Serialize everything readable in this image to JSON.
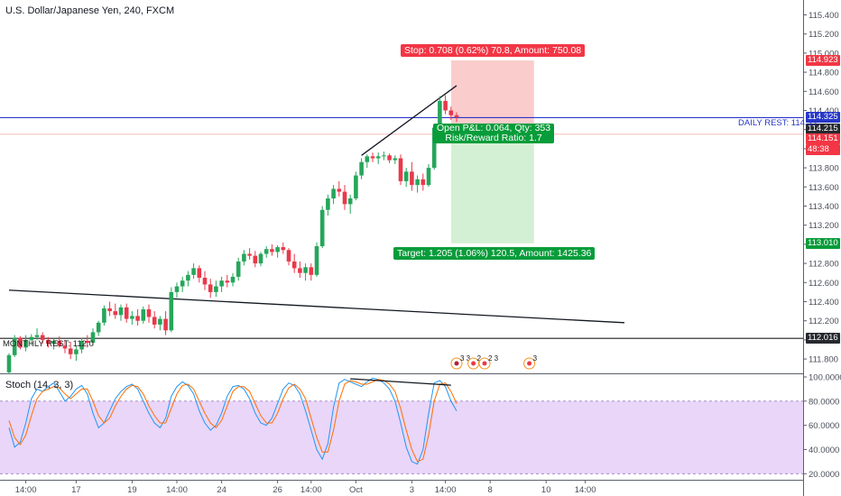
{
  "header": {
    "title": "U.S. Dollar/Japanese Yen, 240, FXCM"
  },
  "chart_data": [
    {
      "type": "candlestick",
      "title": "U.S. Dollar/Japanese Yen, 240, FXCM",
      "symbol": "U.S. Dollar/Japanese Yen",
      "interval": "240",
      "source": "FXCM",
      "y_ticks": [
        "111.800",
        "112.000",
        "112.200",
        "112.400",
        "112.600",
        "112.800",
        "113.000",
        "113.200",
        "113.400",
        "113.600",
        "113.800",
        "114.000",
        "114.200",
        "114.400",
        "114.600",
        "114.800",
        "115.000",
        "115.200",
        "115.400"
      ],
      "ylim": [
        111.65,
        115.48
      ],
      "x_ticks": [
        {
          "label": "14:00",
          "index": 3
        },
        {
          "label": "17",
          "index": 12
        },
        {
          "label": "19",
          "index": 22
        },
        {
          "label": "14:00",
          "index": 30
        },
        {
          "label": "24",
          "index": 38
        },
        {
          "label": "26",
          "index": 48
        },
        {
          "label": "14:00",
          "index": 54
        },
        {
          "label": "Oct",
          "index": 62
        },
        {
          "label": "3",
          "index": 72
        },
        {
          "label": "14:00",
          "index": 78
        },
        {
          "label": "8",
          "index": 86
        },
        {
          "label": "10",
          "index": 96
        },
        {
          "label": "14:00",
          "index": 103
        }
      ],
      "candles": [
        [
          111.66,
          111.86,
          111.64,
          111.84
        ],
        [
          111.84,
          112.05,
          111.82,
          112.02
        ],
        [
          112.02,
          112.04,
          111.9,
          111.92
        ],
        [
          111.92,
          112.05,
          111.88,
          112.0
        ],
        [
          112.0,
          112.06,
          111.94,
          112.03
        ],
        [
          112.03,
          112.12,
          112.0,
          112.05
        ],
        [
          112.05,
          112.08,
          111.96,
          112.0
        ],
        [
          112.0,
          112.03,
          111.92,
          111.96
        ],
        [
          111.96,
          112.02,
          111.9,
          111.99
        ],
        [
          111.99,
          112.04,
          111.92,
          111.94
        ],
        [
          111.94,
          112.0,
          111.86,
          111.91
        ],
        [
          111.91,
          111.98,
          111.8,
          111.85
        ],
        [
          111.85,
          111.94,
          111.78,
          111.9
        ],
        [
          111.9,
          112.02,
          111.86,
          111.99
        ],
        [
          111.99,
          112.05,
          111.92,
          111.97
        ],
        [
          111.97,
          112.12,
          111.94,
          112.08
        ],
        [
          112.08,
          112.2,
          112.04,
          112.18
        ],
        [
          112.18,
          112.36,
          112.15,
          112.33
        ],
        [
          112.33,
          112.4,
          112.25,
          112.3
        ],
        [
          112.3,
          112.38,
          112.22,
          112.26
        ],
        [
          112.26,
          112.37,
          112.2,
          112.34
        ],
        [
          112.34,
          112.38,
          112.18,
          112.22
        ],
        [
          112.22,
          112.3,
          112.16,
          112.25
        ],
        [
          112.25,
          112.32,
          112.15,
          112.2
        ],
        [
          112.2,
          112.35,
          112.17,
          112.32
        ],
        [
          112.32,
          112.37,
          112.18,
          112.24
        ],
        [
          112.24,
          112.3,
          112.12,
          112.16
        ],
        [
          112.16,
          112.25,
          112.1,
          112.22
        ],
        [
          112.22,
          112.3,
          112.05,
          112.1
        ],
        [
          112.1,
          112.55,
          112.08,
          112.5
        ],
        [
          112.5,
          112.6,
          112.44,
          112.56
        ],
        [
          112.56,
          112.66,
          112.5,
          112.62
        ],
        [
          112.62,
          112.72,
          112.56,
          112.68
        ],
        [
          112.68,
          112.8,
          112.64,
          112.75
        ],
        [
          112.75,
          112.78,
          112.6,
          112.65
        ],
        [
          112.65,
          112.72,
          112.52,
          112.58
        ],
        [
          112.58,
          112.64,
          112.44,
          112.5
        ],
        [
          112.5,
          112.62,
          112.45,
          112.56
        ],
        [
          112.56,
          112.66,
          112.5,
          112.62
        ],
        [
          112.62,
          112.68,
          112.55,
          112.6
        ],
        [
          112.6,
          112.7,
          112.56,
          112.66
        ],
        [
          112.66,
          112.86,
          112.62,
          112.82
        ],
        [
          112.82,
          112.94,
          112.78,
          112.9
        ],
        [
          112.9,
          112.96,
          112.84,
          112.88
        ],
        [
          112.88,
          112.93,
          112.76,
          112.8
        ],
        [
          112.8,
          112.92,
          112.77,
          112.9
        ],
        [
          112.9,
          112.98,
          112.86,
          112.95
        ],
        [
          112.95,
          113.0,
          112.88,
          112.92
        ],
        [
          112.92,
          112.99,
          112.86,
          112.97
        ],
        [
          112.97,
          113.02,
          112.9,
          112.94
        ],
        [
          112.94,
          112.96,
          112.78,
          112.82
        ],
        [
          112.82,
          112.9,
          112.7,
          112.75
        ],
        [
          112.75,
          112.82,
          112.65,
          112.7
        ],
        [
          112.7,
          112.8,
          112.62,
          112.76
        ],
        [
          112.76,
          112.8,
          112.62,
          112.68
        ],
        [
          112.68,
          113.02,
          112.66,
          112.98
        ],
        [
          112.98,
          113.4,
          112.96,
          113.36
        ],
        [
          113.36,
          113.52,
          113.3,
          113.48
        ],
        [
          113.48,
          113.62,
          113.42,
          113.58
        ],
        [
          113.58,
          113.66,
          113.5,
          113.55
        ],
        [
          113.55,
          113.62,
          113.36,
          113.42
        ],
        [
          113.42,
          113.52,
          113.32,
          113.48
        ],
        [
          113.48,
          113.76,
          113.46,
          113.72
        ],
        [
          113.72,
          113.9,
          113.68,
          113.86
        ],
        [
          113.86,
          113.94,
          113.8,
          113.92
        ],
        [
          113.92,
          113.96,
          113.86,
          113.9
        ],
        [
          113.9,
          113.96,
          113.84,
          113.92
        ],
        [
          113.92,
          113.97,
          113.88,
          113.93
        ],
        [
          113.93,
          113.95,
          113.85,
          113.88
        ],
        [
          113.88,
          113.93,
          113.84,
          113.9
        ],
        [
          113.9,
          113.94,
          113.62,
          113.66
        ],
        [
          113.66,
          113.8,
          113.6,
          113.76
        ],
        [
          113.76,
          113.86,
          113.56,
          113.62
        ],
        [
          113.62,
          113.72,
          113.54,
          113.68
        ],
        [
          113.68,
          113.74,
          113.56,
          113.62
        ],
        [
          113.62,
          113.84,
          113.6,
          113.8
        ],
        [
          113.8,
          114.25,
          113.78,
          114.22
        ],
        [
          114.22,
          114.55,
          114.18,
          114.5
        ],
        [
          114.5,
          114.56,
          114.36,
          114.4
        ],
        [
          114.4,
          114.44,
          114.3,
          114.35
        ],
        [
          114.35,
          114.38,
          114.28,
          114.33
        ]
      ],
      "horizontal_lines": [
        {
          "label": "DAILY REST:",
          "value": "114.33",
          "price": 114.325,
          "color": "#2737c8"
        },
        {
          "label": "MONTHLY REST:",
          "value": "112.0",
          "price": 112.016,
          "color": "#1f1f1f"
        }
      ],
      "trend_lines": [
        {
          "from": [
            0,
            112.52
          ],
          "to": [
            110,
            112.18
          ]
        },
        {
          "from": [
            63,
            113.93
          ],
          "to": [
            80,
            114.66
          ]
        }
      ],
      "position": {
        "type": "short",
        "entry": 114.215,
        "stop": 114.923,
        "target": 113.01,
        "x_from": 80,
        "x_to": 89,
        "stop_label": "Stop: 0.708 (0.62%) 70.8, Amount: 750.08",
        "target_label": "Target: 1.205 (1.06%) 120.5, Amount: 1425.36",
        "pnl_label": "Open P&L: 0.064, Qty: 353",
        "rr_label": "Risk/Reward Ratio: 1.7"
      },
      "price_labels": [
        {
          "text": "114.923",
          "color": "#f23645"
        },
        {
          "text": "114.325",
          "color": "#2737c8"
        },
        {
          "text": "114.215",
          "color": "#26292f"
        },
        {
          "text": "114.151",
          "color": "#f23645"
        },
        {
          "text": "48:38",
          "color": "#f23645"
        },
        {
          "text": "113.010",
          "color": "#089c3a"
        },
        {
          "text": "112.016",
          "color": "#26292f"
        }
      ],
      "events": [
        {
          "text": "3 3",
          "type": "flag",
          "index": 80
        },
        {
          "text": "2",
          "type": "dot",
          "index": 83
        },
        {
          "text": "2 3",
          "type": "dot",
          "index": 85
        },
        {
          "text": "3",
          "type": "dot",
          "index": 93
        }
      ]
    },
    {
      "type": "line",
      "title": "Stoch (14, 3, 3)",
      "y_ticks": [
        "20.0000",
        "40.0000",
        "60.0000",
        "80.0000",
        "100.0000"
      ],
      "ylim": [
        15,
        100
      ],
      "band": [
        20,
        80
      ],
      "series": [
        {
          "name": "%K",
          "color": "#2196f3",
          "values": [
            58,
            42,
            46,
            62,
            82,
            90,
            88,
            92,
            95,
            88,
            80,
            84,
            90,
            93,
            86,
            70,
            58,
            62,
            72,
            82,
            88,
            92,
            94,
            90,
            80,
            70,
            62,
            58,
            66,
            84,
            92,
            96,
            93,
            86,
            72,
            62,
            56,
            60,
            70,
            84,
            92,
            93,
            90,
            82,
            70,
            62,
            60,
            66,
            78,
            90,
            95,
            93,
            86,
            72,
            56,
            40,
            32,
            45,
            75,
            95,
            98,
            96,
            94,
            92,
            96,
            99,
            98,
            95,
            90,
            80,
            62,
            42,
            30,
            28,
            40,
            70,
            95,
            97,
            92,
            80,
            72
          ]
        },
        {
          "name": "%D",
          "color": "#ff6d00",
          "values": [
            64,
            50,
            44,
            52,
            68,
            82,
            88,
            90,
            92,
            91,
            86,
            82,
            86,
            90,
            90,
            80,
            68,
            62,
            66,
            76,
            84,
            90,
            93,
            92,
            86,
            76,
            68,
            62,
            62,
            74,
            86,
            93,
            94,
            90,
            80,
            70,
            62,
            58,
            64,
            76,
            88,
            92,
            92,
            88,
            78,
            68,
            62,
            62,
            70,
            82,
            91,
            94,
            90,
            82,
            66,
            50,
            38,
            38,
            56,
            80,
            94,
            97,
            96,
            94,
            94,
            96,
            98,
            97,
            94,
            88,
            74,
            56,
            40,
            30,
            32,
            52,
            80,
            94,
            95,
            88,
            78
          ]
        }
      ],
      "trend_line": {
        "from": [
          61,
          98.5
        ],
        "to": [
          79,
          93.2
        ]
      }
    }
  ],
  "stoch_title": "Stoch (14, 3, 3)"
}
